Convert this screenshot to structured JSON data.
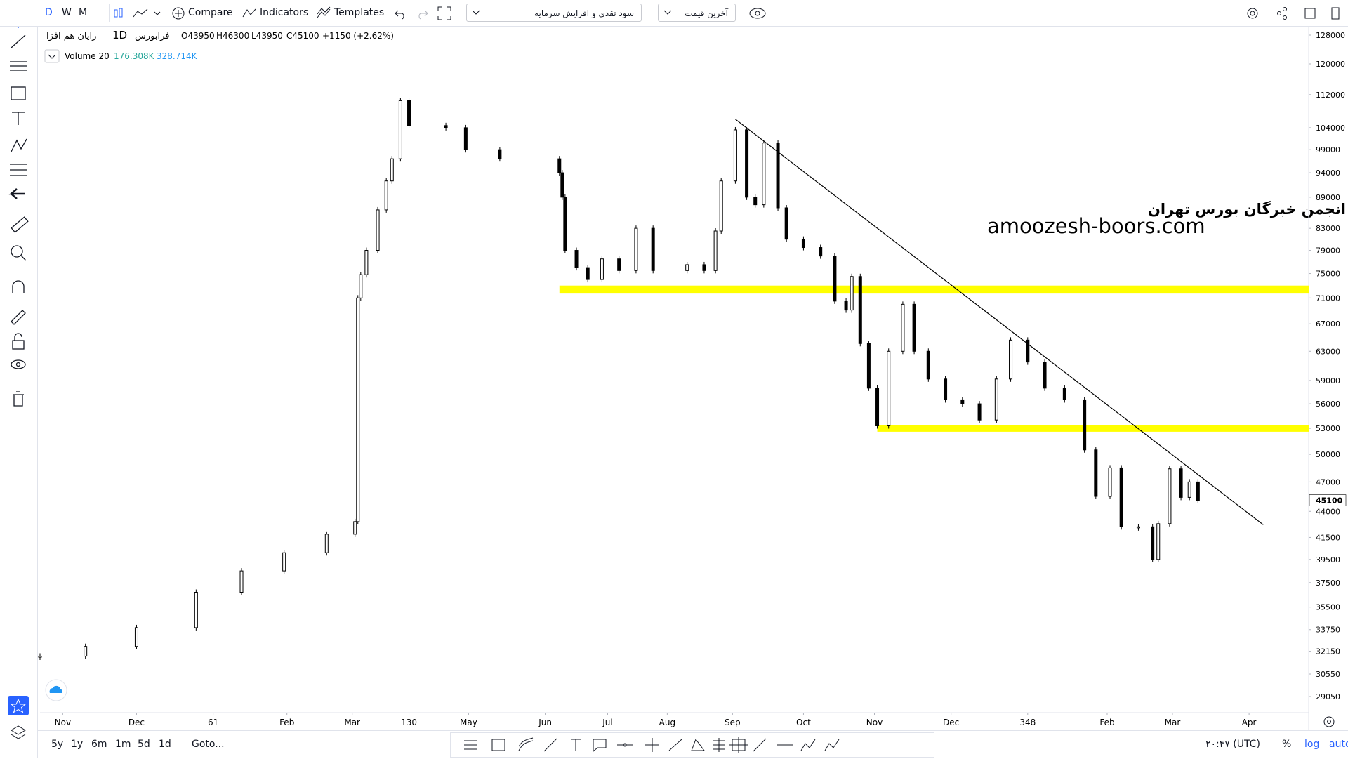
{
  "toolbar": {
    "intervals": [
      "D",
      "W",
      "M"
    ],
    "compare": "Compare",
    "indicators": "Indicators",
    "templates": "Templates",
    "adjustment": "سود نقدی و افزایش سرمایه",
    "price_type": "آخرین قیمت"
  },
  "legend": {
    "exchange": "فرابورس",
    "interval": "1D",
    "symbol": "رایان هم افزا",
    "open": "O43950",
    "high": "H46300",
    "low": "L43950",
    "close": "C45100",
    "change": "+1150 (+2.62%)",
    "volume_label": "Volume 20",
    "volume_value": "176.308K",
    "volume_ma": "328.714K"
  },
  "watermark": {
    "line1": "انجمن خبرگان بورس تهران",
    "line2": "amoozesh-boors.com"
  },
  "chart_data": {
    "type": "candlestick",
    "x": [
      0,
      16,
      34,
      55,
      71,
      86,
      101,
      111,
      112,
      113,
      115,
      119,
      122,
      124,
      127,
      130,
      143,
      150,
      162,
      183,
      184,
      185,
      189,
      193,
      198,
      204,
      210,
      216,
      228,
      234,
      238,
      240,
      245,
      249,
      252,
      255,
      260,
      263,
      269,
      275,
      280,
      284,
      286,
      289,
      292,
      295,
      299,
      304,
      308,
      313,
      319,
      325,
      331,
      337,
      342,
      348,
      354,
      361,
      368,
      372,
      377,
      381,
      387,
      392,
      394,
      398,
      402,
      405,
      408
    ],
    "values": [
      31800,
      32500,
      33900,
      36700,
      38500,
      40100,
      41800,
      43000,
      71000,
      74800,
      79000,
      86500,
      92300,
      97000,
      110500,
      104500,
      104000,
      99000,
      97000,
      94000,
      89000,
      79000,
      76000,
      74000,
      77500,
      75500,
      83000,
      75500,
      76500,
      75500,
      82500,
      92300,
      103500,
      89000,
      87500,
      100500,
      86900,
      81000,
      79500,
      78000,
      70500,
      69100,
      74500,
      64100,
      58000,
      53300,
      63000,
      70000,
      63000,
      59200,
      56500,
      56000,
      54000,
      59200,
      64600,
      61500,
      58000,
      56500,
      50500,
      45500,
      48500,
      42500,
      42500,
      39500,
      42800,
      48400,
      45400,
      47000,
      45100
    ],
    "up_color": "#ffffff",
    "down_color": "#000000",
    "log_scale": true,
    "ylim": [
      29050,
      128000
    ],
    "yticks": [
      128000,
      120000,
      112000,
      104000,
      99000,
      94000,
      89000,
      83000,
      79000,
      75000,
      71000,
      67000,
      63000,
      59000,
      56000,
      53000,
      50000,
      47000,
      44000,
      41500,
      39500,
      37500,
      35500,
      33750,
      32150,
      30550,
      29050
    ],
    "xlim": [
      0,
      447
    ],
    "xticks": [
      {
        "value": 8,
        "label": "Nov"
      },
      {
        "value": 34,
        "label": "Dec"
      },
      61,
      {
        "value": 87,
        "label": "Feb"
      },
      {
        "value": 110,
        "label": "Mar"
      },
      130,
      {
        "value": 151,
        "label": "May"
      },
      {
        "value": 178,
        "label": "Jun"
      },
      {
        "value": 200,
        "label": "Jul"
      },
      {
        "value": 221,
        "label": "Aug"
      },
      {
        "value": 244,
        "label": "Sep"
      },
      {
        "value": 269,
        "label": "Oct"
      },
      {
        "value": 294,
        "label": "Nov"
      },
      {
        "value": 321,
        "label": "Dec"
      },
      348,
      {
        "value": 376,
        "label": "Feb"
      },
      {
        "value": 399,
        "label": "Mar"
      },
      {
        "value": 426,
        "label": "Apr"
      }
    ],
    "last_price": 45100,
    "bands": [
      {
        "from": 71700,
        "to": 73000,
        "x_start": 183,
        "color": "#ffff00"
      },
      {
        "from": 52600,
        "to": 53400,
        "x_start": 295,
        "color": "#ffff00"
      }
    ],
    "trend_line": {
      "x": [
        245,
        431
      ],
      "values": [
        106000,
        42700
      ],
      "color": "#000000"
    }
  },
  "bottom_bar": {
    "ranges": [
      "5y",
      "1y",
      "6m",
      "1m",
      "5d",
      "1d"
    ],
    "goto": "Goto...",
    "clock": "۲۰:۴۷ (UTC)",
    "percent": "%",
    "log": "log",
    "auto": "auto"
  }
}
